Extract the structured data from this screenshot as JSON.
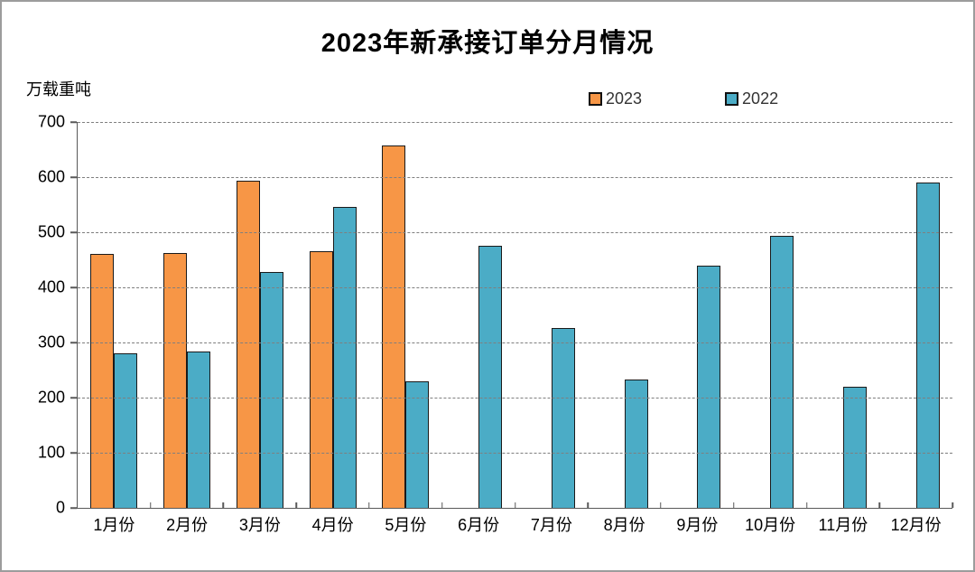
{
  "title": "2023年新承接订单分月情况",
  "y_unit_label": "万载重吨",
  "legend": {
    "items": [
      {
        "label": "2023",
        "color": "#F79646"
      },
      {
        "label": "2022",
        "color": "#4BACC6"
      }
    ]
  },
  "colors": {
    "series_2023": "#F79646",
    "series_2022": "#4BACC6",
    "bar_border": "#1a1a1a",
    "axis": "#595959",
    "gridline": "#7f7f7f",
    "frame_border": "#9c9c9c",
    "text": "#000000"
  },
  "chart_data": {
    "type": "bar",
    "title": "2023年新承接订单分月情况",
    "xlabel": "",
    "ylabel": "万载重吨",
    "categories": [
      "1月份",
      "2月份",
      "3月份",
      "4月份",
      "5月份",
      "6月份",
      "7月份",
      "8月份",
      "9月份",
      "10月份",
      "11月份",
      "12月份"
    ],
    "series": [
      {
        "name": "2023",
        "color": "#F79646",
        "values": [
          460,
          462,
          593,
          466,
          658,
          null,
          null,
          null,
          null,
          null,
          null,
          null
        ]
      },
      {
        "name": "2022",
        "color": "#4BACC6",
        "values": [
          281,
          283,
          428,
          546,
          230,
          476,
          326,
          233,
          440,
          493,
          220,
          590
        ]
      }
    ],
    "ylim": [
      0,
      700
    ],
    "ytick_step": 100,
    "ytick_labels": [
      "0",
      "100",
      "200",
      "300",
      "400",
      "500",
      "600",
      "700"
    ],
    "grid": "horizontal-dashed",
    "legend_position": "top"
  }
}
